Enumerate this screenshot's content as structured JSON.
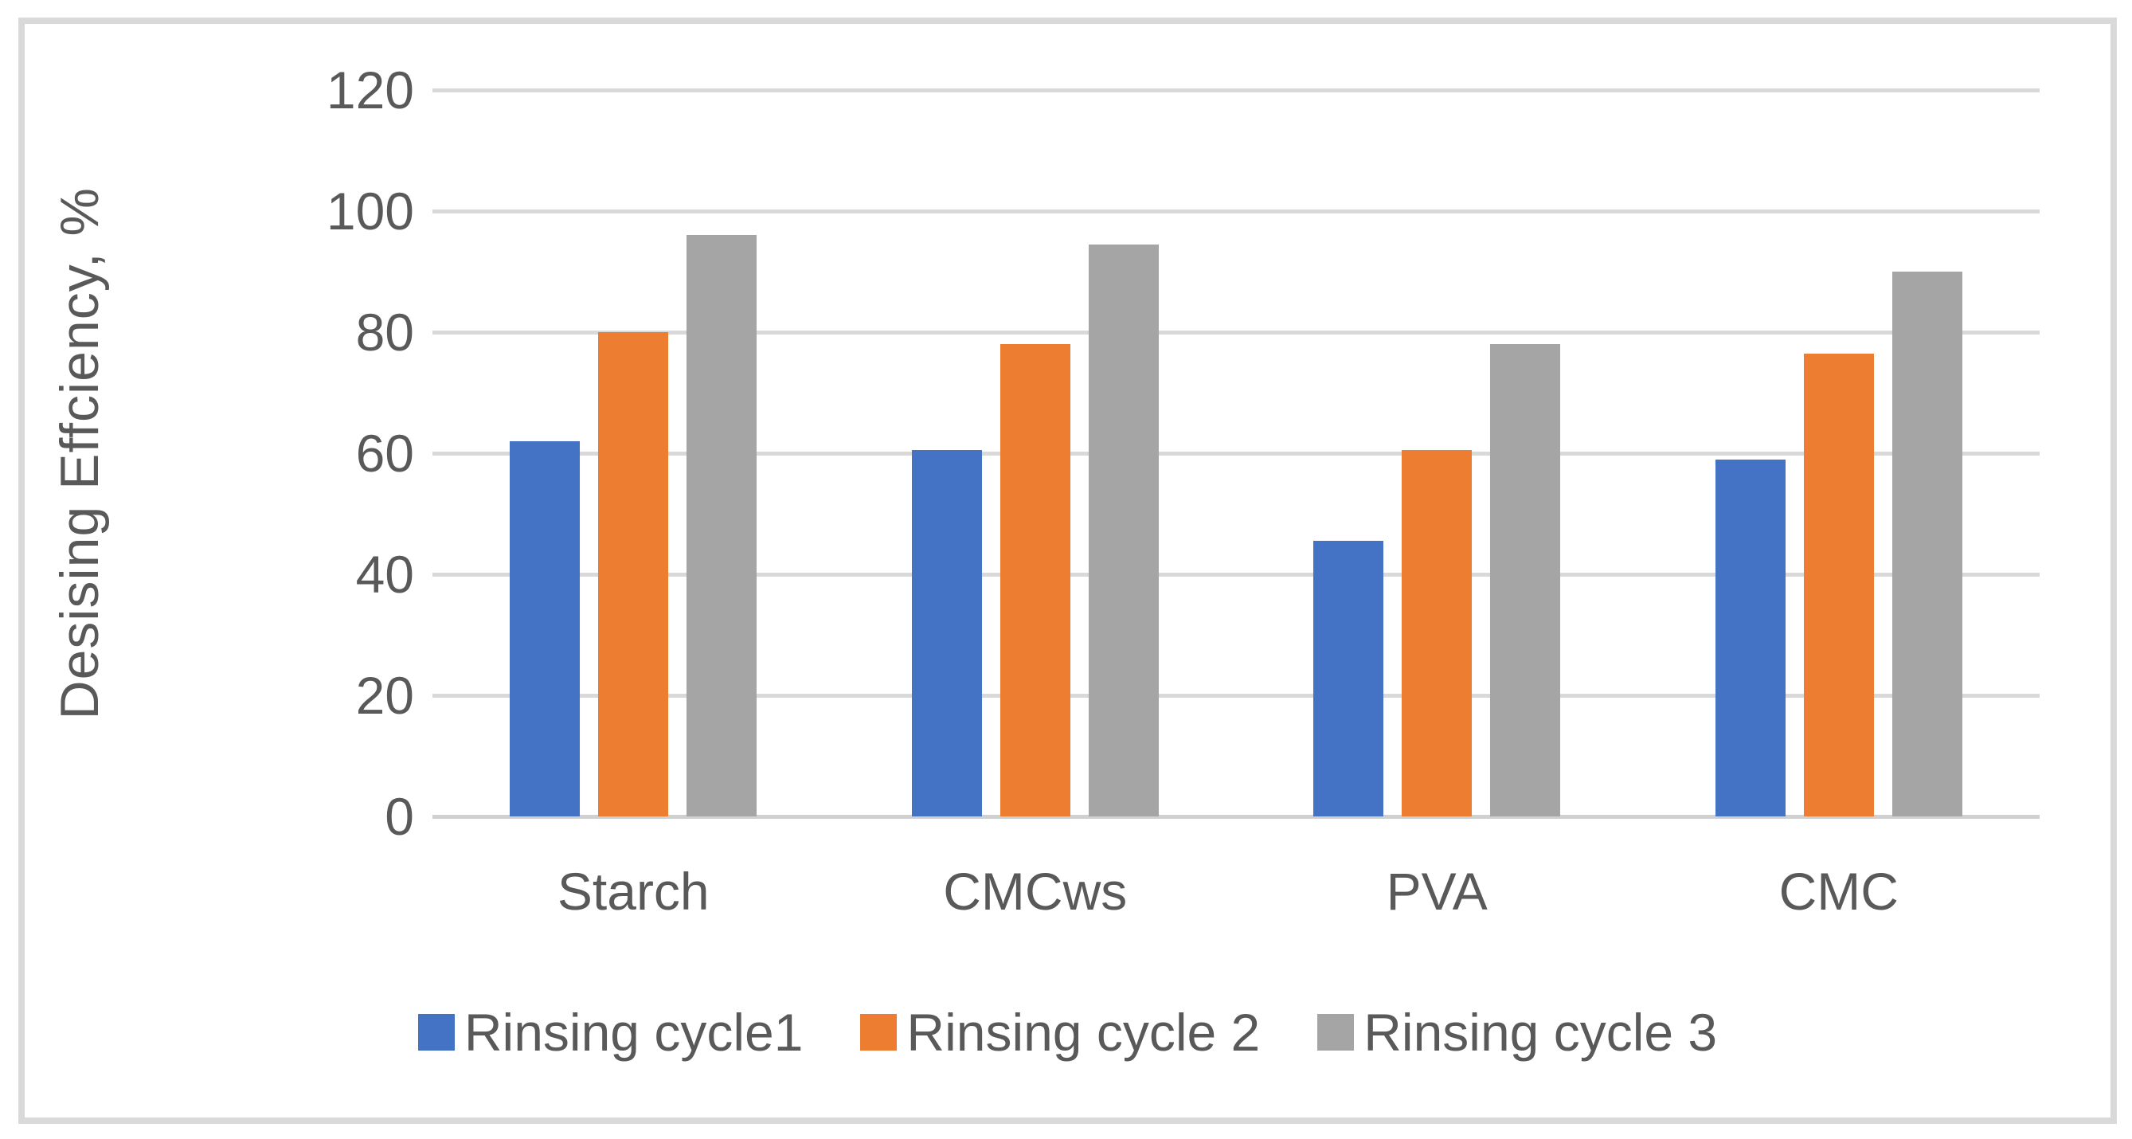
{
  "chart_data": {
    "type": "bar",
    "title": "",
    "xlabel": "",
    "ylabel": "Desising Effciency, %",
    "categories": [
      "Starch",
      "CMCws",
      "PVA",
      "CMC"
    ],
    "series": [
      {
        "name": "Rinsing cycle1",
        "color": "#4472C4",
        "values": [
          62,
          60.5,
          45.5,
          59
        ]
      },
      {
        "name": "Rinsing cycle 2",
        "color": "#ED7D31",
        "values": [
          80,
          78,
          60.5,
          76.5
        ]
      },
      {
        "name": "Rinsing cycle 3",
        "color": "#A5A5A5",
        "values": [
          96,
          94.5,
          78,
          90
        ]
      }
    ],
    "ylim": [
      0,
      120
    ],
    "yticks": [
      0,
      20,
      40,
      60,
      80,
      100,
      120
    ],
    "grid": true,
    "legend_position": "bottom"
  },
  "colors": {
    "grid": "#D9D9D9",
    "axis": "#D0D0D0",
    "text": "#595959",
    "border": "#D9D9D9",
    "background": "#FFFFFF"
  }
}
